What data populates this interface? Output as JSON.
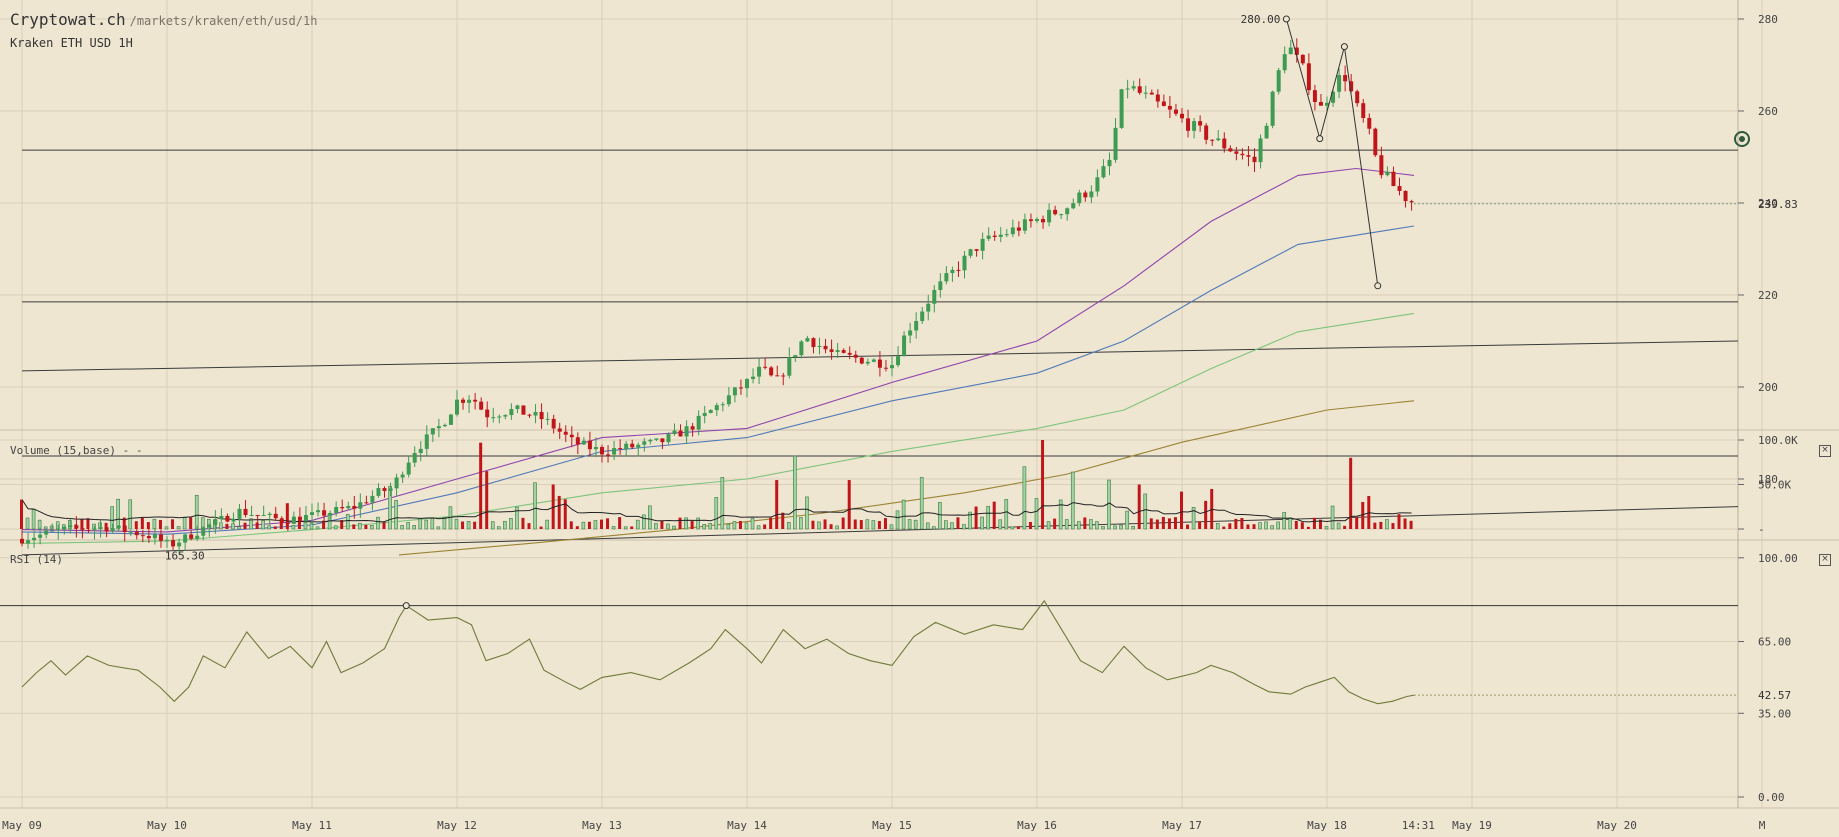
{
  "header": {
    "site": "Cryptowat.ch",
    "path": "/markets/kraken/eth/usd/1h",
    "subtitle": "Kraken ETH USD 1H"
  },
  "colors": {
    "background": "#efe6d2",
    "grid": "#d9cfbb",
    "bull": "#3d9b52",
    "bear": "#c0161a",
    "ma_purple": "#8e44ad",
    "ma_blue": "#4f79b8",
    "ma_green": "#7dc47d",
    "ma_olive": "#9a8434",
    "rsi_line": "#6f7a3a",
    "rsi_high": "#333333"
  },
  "chart_data": [
    {
      "type": "candlestick",
      "title": "Kraken ETH USD 1H",
      "x_ticks": [
        "May 09",
        "May 10",
        "May 11",
        "May 12",
        "May 13",
        "May 14",
        "May 15",
        "May 16",
        "May 17",
        "May 18",
        "May 19",
        "May 20",
        "M"
      ],
      "current_time_label": "14:31",
      "y_ticks": [
        180,
        200,
        220,
        240,
        260,
        280
      ],
      "ylim": [
        162,
        284
      ],
      "last_price": 239.83,
      "last_price_label": "239.83",
      "high_marker": {
        "label": "280.00",
        "value": 280.0,
        "day": 8.72
      },
      "low_marker": {
        "label": "165.30",
        "value": 165.3,
        "day": 1.02
      },
      "anchors": [
        [
          0.0,
          167
        ],
        [
          0.3,
          169
        ],
        [
          0.6,
          169.5
        ],
        [
          0.9,
          167.5
        ],
        [
          1.02,
          165.5
        ],
        [
          1.3,
          170
        ],
        [
          1.5,
          173
        ],
        [
          1.8,
          171
        ],
        [
          2.0,
          172
        ],
        [
          2.3,
          174
        ],
        [
          2.45,
          177
        ],
        [
          2.55,
          178
        ],
        [
          2.7,
          186
        ],
        [
          2.9,
          192
        ],
        [
          3.0,
          197
        ],
        [
          3.1,
          198
        ],
        [
          3.2,
          194
        ],
        [
          3.4,
          195
        ],
        [
          3.6,
          193
        ],
        [
          3.8,
          188
        ],
        [
          4.0,
          186
        ],
        [
          4.2,
          187
        ],
        [
          4.4,
          188
        ],
        [
          4.6,
          191
        ],
        [
          4.8,
          196
        ],
        [
          5.0,
          201
        ],
        [
          5.1,
          204
        ],
        [
          5.2,
          201
        ],
        [
          5.4,
          211
        ],
        [
          5.6,
          207
        ],
        [
          5.8,
          206
        ],
        [
          6.0,
          205
        ],
        [
          6.1,
          212
        ],
        [
          6.3,
          221
        ],
        [
          6.6,
          231
        ],
        [
          6.9,
          235
        ],
        [
          7.2,
          239
        ],
        [
          7.4,
          244
        ],
        [
          7.5,
          249
        ],
        [
          7.6,
          266
        ],
        [
          7.8,
          262
        ],
        [
          8.0,
          258
        ],
        [
          8.2,
          254
        ],
        [
          8.5,
          249
        ],
        [
          8.6,
          260
        ],
        [
          8.72,
          275
        ],
        [
          8.85,
          268
        ],
        [
          8.95,
          260
        ],
        [
          9.05,
          266
        ],
        [
          9.12,
          268
        ],
        [
          9.2,
          261
        ],
        [
          9.28,
          256
        ],
        [
          9.35,
          248
        ],
        [
          9.45,
          244
        ],
        [
          9.55,
          241
        ],
        [
          9.6,
          240
        ]
      ],
      "moving_averages": [
        {
          "key": "ma_purple",
          "points": [
            [
              0,
              169
            ],
            [
              1,
              168.5
            ],
            [
              2,
              171
            ],
            [
              3,
              180
            ],
            [
              4,
              189
            ],
            [
              5,
              191
            ],
            [
              6,
              201
            ],
            [
              7,
              210
            ],
            [
              7.6,
              222
            ],
            [
              8.2,
              236
            ],
            [
              8.8,
              246
            ],
            [
              9.2,
              247.5
            ],
            [
              9.6,
              246
            ]
          ]
        },
        {
          "key": "ma_blue",
          "points": [
            [
              0,
              168.5
            ],
            [
              1,
              168
            ],
            [
              2,
              170
            ],
            [
              3,
              177
            ],
            [
              4,
              186
            ],
            [
              5,
              189
            ],
            [
              6,
              197
            ],
            [
              7,
              203
            ],
            [
              7.6,
              210
            ],
            [
              8.2,
              221
            ],
            [
              8.8,
              231
            ],
            [
              9.6,
              235
            ]
          ]
        },
        {
          "key": "ma_green",
          "points": [
            [
              0,
              166
            ],
            [
              1,
              166.5
            ],
            [
              2,
              169
            ],
            [
              3,
              172
            ],
            [
              4,
              177
            ],
            [
              5,
              180
            ],
            [
              6,
              186
            ],
            [
              7,
              191
            ],
            [
              7.6,
              195
            ],
            [
              8.2,
              204
            ],
            [
              8.8,
              212
            ],
            [
              9.6,
              216
            ]
          ]
        },
        {
          "key": "ma_olive",
          "points": [
            [
              2.6,
              163.5
            ],
            [
              3.5,
              166
            ],
            [
              4.5,
              169
            ],
            [
              5.5,
              172.5
            ],
            [
              6.5,
              177
            ],
            [
              7.2,
              181
            ],
            [
              8.0,
              188
            ],
            [
              9.0,
              195
            ],
            [
              9.6,
              197
            ]
          ]
        }
      ],
      "trend_lines": [
        {
          "points": [
            [
              0,
              218.5
            ],
            [
              12,
              218.5
            ]
          ]
        },
        {
          "points": [
            [
              0,
              185
            ],
            [
              12,
              185
            ]
          ]
        },
        {
          "points": [
            [
              0,
              251.5
            ],
            [
              12,
              251.5
            ]
          ]
        },
        {
          "points": [
            [
              0,
              203.5
            ],
            [
              12,
              210
            ]
          ]
        },
        {
          "points": [
            [
              0,
              163.5
            ],
            [
              12,
              174
            ]
          ]
        }
      ],
      "pattern": {
        "points": [
          [
            8.72,
            280
          ],
          [
            8.95,
            254
          ],
          [
            9.12,
            274
          ],
          [
            9.35,
            222
          ]
        ]
      }
    },
    {
      "type": "bar",
      "title": "Volume (15,base) - -",
      "y_ticks": [
        "100.0K",
        "50.0K",
        "-"
      ],
      "y_tick_values": [
        100000,
        50000,
        0
      ],
      "ylim": [
        0,
        100000
      ],
      "baseline": 8000,
      "spikes": [
        {
          "day": 3.15,
          "value": 97000,
          "dir": "down"
        },
        {
          "day": 3.2,
          "value": 65000,
          "dir": "down"
        },
        {
          "day": 2.55,
          "value": 48000,
          "dir": "up"
        },
        {
          "day": 3.55,
          "value": 52000,
          "dir": "down"
        },
        {
          "day": 3.65,
          "value": 50000,
          "dir": "down"
        },
        {
          "day": 4.85,
          "value": 58000,
          "dir": "up"
        },
        {
          "day": 5.35,
          "value": 82000,
          "dir": "up"
        },
        {
          "day": 5.2,
          "value": 55000,
          "dir": "down"
        },
        {
          "day": 5.7,
          "value": 55000,
          "dir": "up"
        },
        {
          "day": 6.2,
          "value": 58000,
          "dir": "up"
        },
        {
          "day": 6.9,
          "value": 70000,
          "dir": "up"
        },
        {
          "day": 7.05,
          "value": 100000,
          "dir": "up"
        },
        {
          "day": 7.25,
          "value": 64000,
          "dir": "down"
        },
        {
          "day": 7.5,
          "value": 55000,
          "dir": "up"
        },
        {
          "day": 8.2,
          "value": 45000,
          "dir": "up"
        },
        {
          "day": 9.18,
          "value": 80000,
          "dir": "down"
        },
        {
          "day": 7.7,
          "value": 50000,
          "dir": "down"
        },
        {
          "day": 8.0,
          "value": 42000,
          "dir": "up"
        }
      ]
    },
    {
      "type": "line",
      "title": "RSI (14)",
      "y_ticks": [
        0,
        35,
        65,
        100
      ],
      "y_tick_labels": [
        "0.00",
        "35.00",
        "65.00",
        "100.00"
      ],
      "ylim": [
        0,
        100
      ],
      "last_value": 42.57,
      "last_value_label": "42.57",
      "overbought_level": 80,
      "high_markers": [
        {
          "day": 2.65,
          "value": 80
        }
      ],
      "points": [
        [
          0.0,
          46
        ],
        [
          0.1,
          52
        ],
        [
          0.2,
          57
        ],
        [
          0.3,
          51
        ],
        [
          0.45,
          59
        ],
        [
          0.6,
          55
        ],
        [
          0.8,
          53
        ],
        [
          0.95,
          46
        ],
        [
          1.05,
          40
        ],
        [
          1.15,
          46
        ],
        [
          1.25,
          59
        ],
        [
          1.4,
          54
        ],
        [
          1.55,
          69
        ],
        [
          1.7,
          58
        ],
        [
          1.85,
          63
        ],
        [
          2.0,
          54
        ],
        [
          2.1,
          65
        ],
        [
          2.2,
          52
        ],
        [
          2.35,
          56
        ],
        [
          2.5,
          62
        ],
        [
          2.6,
          75
        ],
        [
          2.65,
          80
        ],
        [
          2.8,
          74
        ],
        [
          3.0,
          75
        ],
        [
          3.1,
          72
        ],
        [
          3.2,
          57
        ],
        [
          3.35,
          60
        ],
        [
          3.5,
          66
        ],
        [
          3.6,
          53
        ],
        [
          3.75,
          48
        ],
        [
          3.85,
          45
        ],
        [
          4.0,
          50
        ],
        [
          4.2,
          52
        ],
        [
          4.4,
          49
        ],
        [
          4.6,
          56
        ],
        [
          4.75,
          62
        ],
        [
          4.85,
          70
        ],
        [
          5.0,
          62
        ],
        [
          5.1,
          56
        ],
        [
          5.25,
          70
        ],
        [
          5.4,
          62
        ],
        [
          5.55,
          66
        ],
        [
          5.7,
          60
        ],
        [
          5.85,
          57
        ],
        [
          6.0,
          55
        ],
        [
          6.15,
          67
        ],
        [
          6.3,
          73
        ],
        [
          6.5,
          68
        ],
        [
          6.7,
          72
        ],
        [
          6.9,
          70
        ],
        [
          7.05,
          82
        ],
        [
          7.15,
          72
        ],
        [
          7.3,
          57
        ],
        [
          7.45,
          52
        ],
        [
          7.6,
          63
        ],
        [
          7.75,
          54
        ],
        [
          7.9,
          49
        ],
        [
          8.1,
          52
        ],
        [
          8.2,
          55
        ],
        [
          8.35,
          52
        ],
        [
          8.5,
          47
        ],
        [
          8.6,
          44
        ],
        [
          8.75,
          43
        ],
        [
          8.85,
          46
        ],
        [
          8.95,
          48
        ],
        [
          9.05,
          50
        ],
        [
          9.15,
          44
        ],
        [
          9.25,
          41
        ],
        [
          9.35,
          39
        ],
        [
          9.45,
          40
        ],
        [
          9.55,
          42
        ],
        [
          9.6,
          42.57
        ]
      ]
    }
  ]
}
